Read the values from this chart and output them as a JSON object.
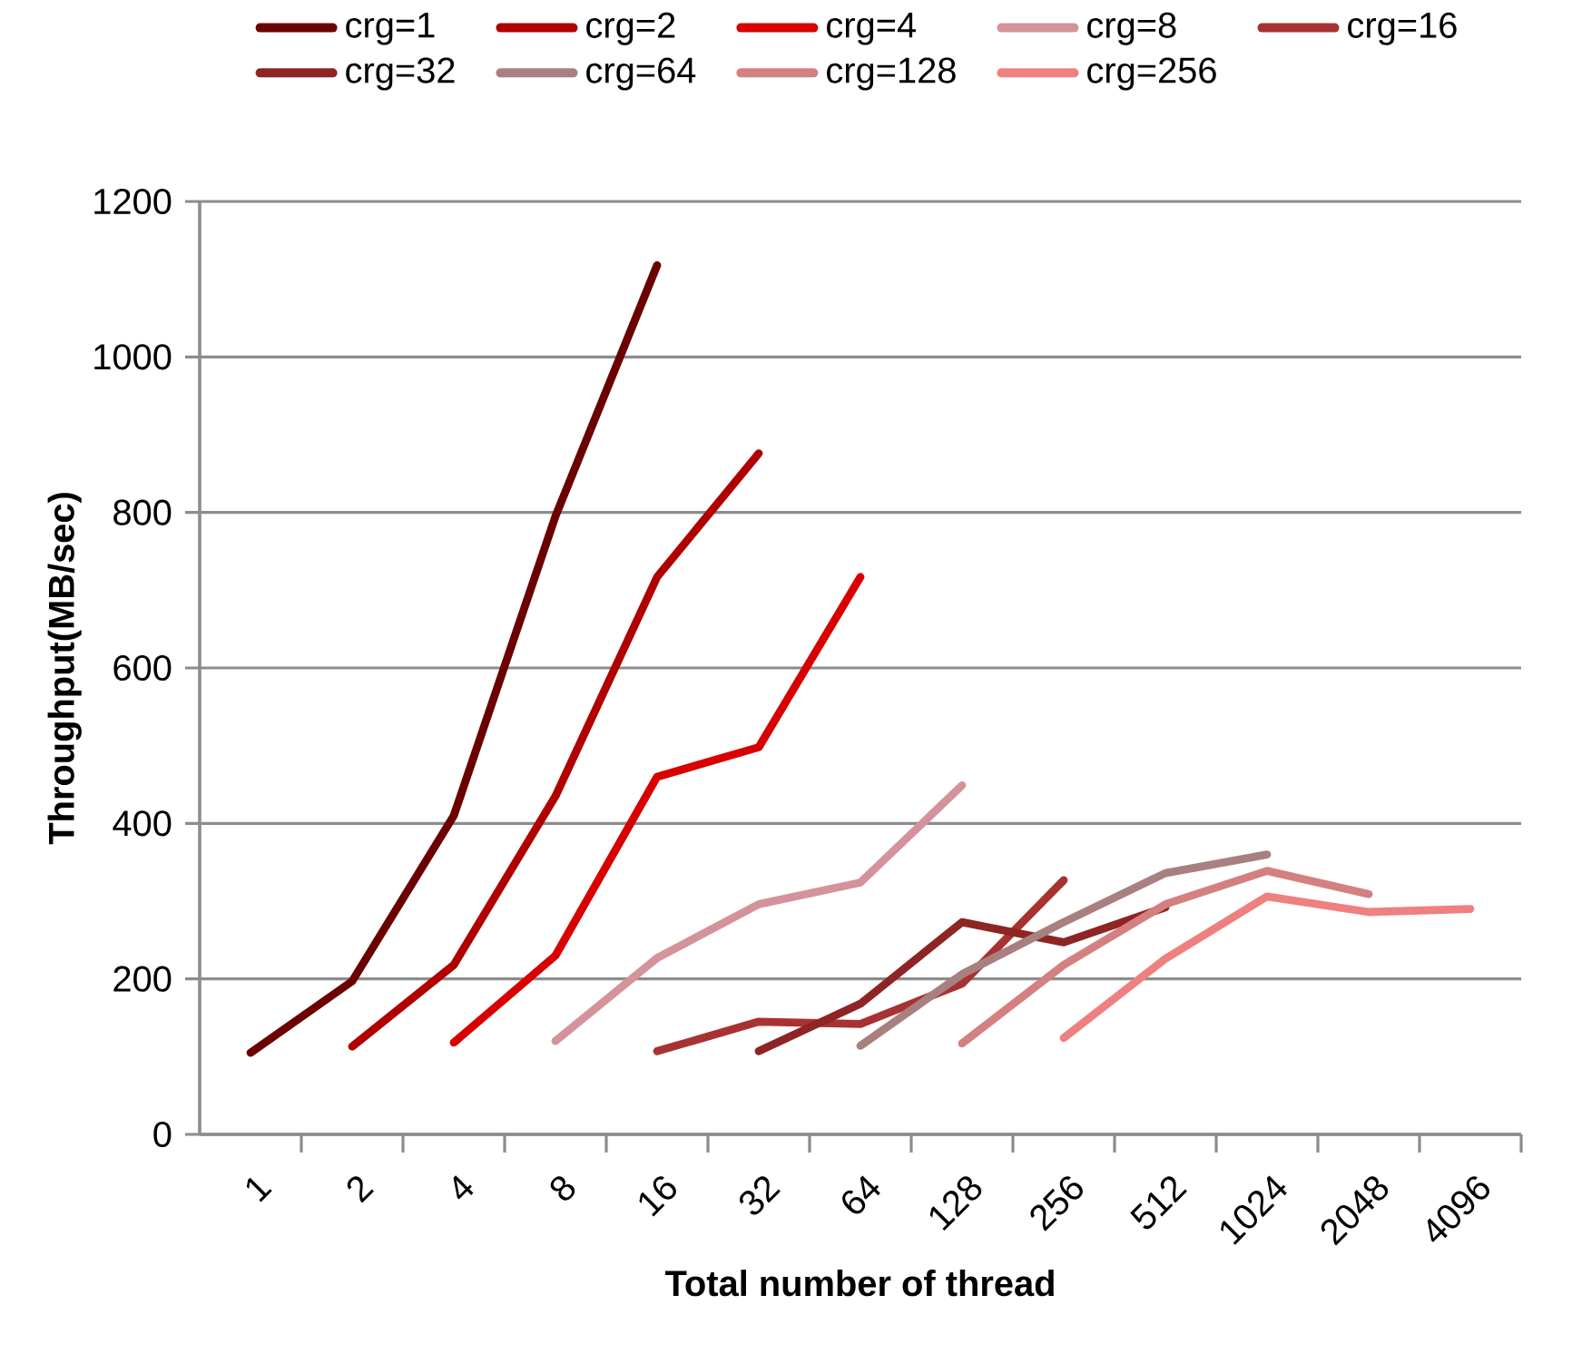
{
  "chart_data": {
    "type": "line",
    "xlabel": "Total number of thread",
    "ylabel": "Throughput(MB/sec)",
    "categories": [
      "1",
      "2",
      "4",
      "8",
      "16",
      "32",
      "64",
      "128",
      "256",
      "512",
      "1024",
      "2048",
      "4096"
    ],
    "ylim": [
      0,
      1200
    ],
    "yticks": [
      0,
      200,
      400,
      600,
      800,
      1000,
      1200
    ],
    "grid": "y",
    "legend": "top",
    "marker": "none",
    "line_style": "solid",
    "series": [
      {
        "name": "crg=1",
        "color": "#6b0000",
        "values": [
          105,
          197,
          410,
          795,
          1118,
          null,
          null,
          null,
          null,
          null,
          null,
          null,
          null
        ]
      },
      {
        "name": "crg=2",
        "color": "#b00000",
        "values": [
          null,
          113,
          218,
          435,
          717,
          876,
          null,
          null,
          null,
          null,
          null,
          null,
          null
        ]
      },
      {
        "name": "crg=4",
        "color": "#d80000",
        "values": [
          null,
          null,
          118,
          230,
          460,
          498,
          717,
          null,
          null,
          null,
          null,
          null,
          null
        ]
      },
      {
        "name": "crg=8",
        "color": "#d4939a",
        "values": [
          null,
          null,
          null,
          120,
          227,
          296,
          324,
          449,
          null,
          null,
          null,
          null,
          null
        ]
      },
      {
        "name": "crg=16",
        "color": "#a83232",
        "values": [
          null,
          null,
          null,
          null,
          107,
          145,
          142,
          194,
          327,
          null,
          null,
          null,
          null
        ]
      },
      {
        "name": "crg=32",
        "color": "#8e2525",
        "values": [
          null,
          null,
          null,
          null,
          null,
          107,
          168,
          273,
          247,
          292,
          null,
          null,
          null
        ]
      },
      {
        "name": "crg=64",
        "color": "#a88080",
        "values": [
          null,
          null,
          null,
          null,
          null,
          null,
          114,
          206,
          273,
          336,
          360,
          null,
          null
        ]
      },
      {
        "name": "crg=128",
        "color": "#d48080",
        "values": [
          null,
          null,
          null,
          null,
          null,
          null,
          null,
          117,
          218,
          296,
          339,
          309,
          null
        ]
      },
      {
        "name": "crg=256",
        "color": "#ef8080",
        "values": [
          null,
          null,
          null,
          null,
          null,
          null,
          null,
          null,
          124,
          226,
          306,
          286,
          290
        ]
      }
    ]
  }
}
